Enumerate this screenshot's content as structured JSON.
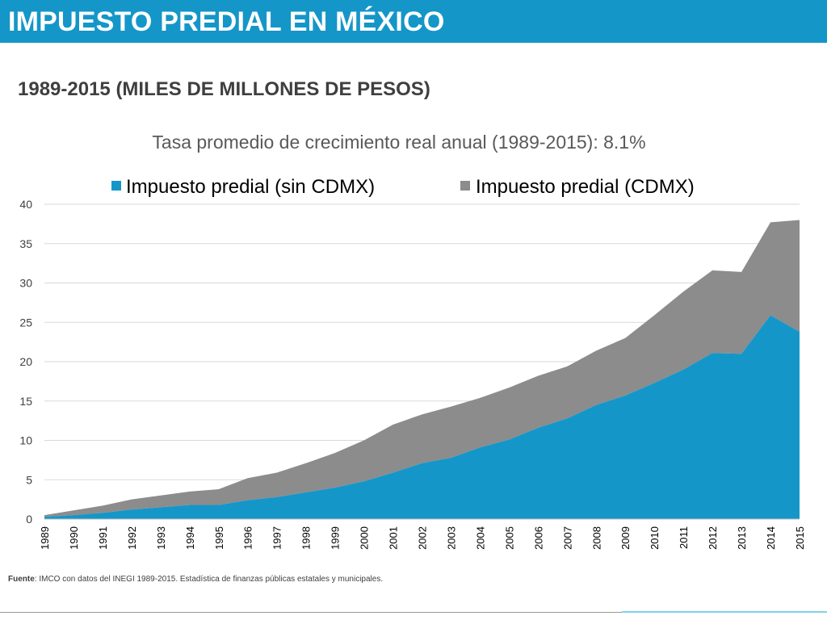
{
  "header": {
    "title": "IMPUESTO PREDIAL EN MÉXICO"
  },
  "subtitle": "1989-2015 (MILES DE MILLONES DE PESOS)",
  "footer": {
    "label": "Fuente",
    "text": ": IMCO con datos del INEGI 1989-2015. Estadística de finanzas públicas estatales y municipales."
  },
  "colors": {
    "banner": "#1596c8",
    "series_blue": "#1596c8",
    "series_gray": "#8c8c8c"
  },
  "chart_data": {
    "type": "area",
    "stacked": true,
    "title": "Tasa promedio de crecimiento real anual (1989-2015): 8.1%",
    "xlabel": "",
    "ylabel": "",
    "ylim": [
      0,
      40
    ],
    "yticks": [
      0,
      5,
      10,
      15,
      20,
      25,
      30,
      35,
      40
    ],
    "grid": true,
    "legend_position": "top",
    "categories": [
      "1989",
      "1990",
      "1991",
      "1992",
      "1993",
      "1994",
      "1995",
      "1996",
      "1997",
      "1998",
      "1999",
      "2000",
      "2001",
      "2002",
      "2003",
      "2004",
      "2005",
      "2006",
      "2007",
      "2008",
      "2009",
      "2010",
      "2011",
      "2012",
      "2013",
      "2014",
      "2015"
    ],
    "series": [
      {
        "name": "Impuesto predial (sin CDMX)",
        "color": "#1596c8",
        "values": [
          0.3,
          0.5,
          0.8,
          1.2,
          1.5,
          1.8,
          1.8,
          2.4,
          2.8,
          3.4,
          4.0,
          4.8,
          5.9,
          7.1,
          7.8,
          9.1,
          10.1,
          11.6,
          12.8,
          14.5,
          15.7,
          17.3,
          19.0,
          21.1,
          21.0,
          25.9,
          23.8
        ]
      },
      {
        "name": "Impuesto predial (CDMX)",
        "color": "#8c8c8c",
        "values": [
          0.2,
          0.6,
          0.9,
          1.3,
          1.5,
          1.7,
          2.0,
          2.8,
          3.1,
          3.7,
          4.4,
          5.2,
          6.1,
          6.2,
          6.5,
          6.3,
          6.6,
          6.6,
          6.6,
          6.9,
          7.3,
          8.6,
          9.9,
          10.5,
          10.4,
          11.8,
          14.2
        ]
      }
    ]
  }
}
